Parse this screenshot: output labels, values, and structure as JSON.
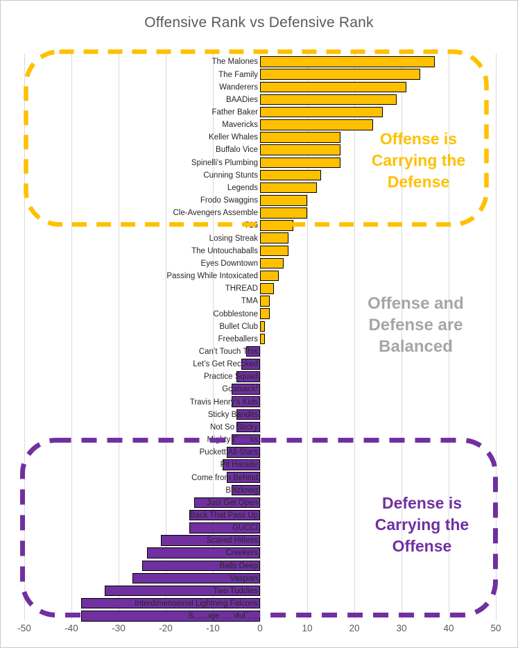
{
  "chart_data": {
    "type": "bar",
    "orientation": "horizontal",
    "title": "Offensive Rank vs Defensive Rank",
    "xlabel": "",
    "ylabel": "",
    "xlim": [
      -50,
      50
    ],
    "xticks": [
      -50,
      -40,
      -30,
      -20,
      -10,
      0,
      10,
      20,
      30,
      40,
      50
    ],
    "grid": true,
    "legend": "none",
    "teams": [
      {
        "name": "The Malones",
        "value": 37
      },
      {
        "name": "The Family",
        "value": 34
      },
      {
        "name": "Wanderers",
        "value": 31
      },
      {
        "name": "BAADies",
        "value": 29
      },
      {
        "name": "Father Baker",
        "value": 26
      },
      {
        "name": "Mavericks",
        "value": 24
      },
      {
        "name": "Keller Whales",
        "value": 17
      },
      {
        "name": "Buffalo Vice",
        "value": 17
      },
      {
        "name": "Spinelli's Plumbing",
        "value": 17
      },
      {
        "name": "Cunning Stunts",
        "value": 13
      },
      {
        "name": "Legends",
        "value": 12
      },
      {
        "name": "Frodo Swaggins",
        "value": 10
      },
      {
        "name": "Cle-Avengers Assemble",
        "value": 10
      },
      {
        "name": "716",
        "value": 7
      },
      {
        "name": "Losing Streak",
        "value": 6
      },
      {
        "name": "The Untouchaballs",
        "value": 6
      },
      {
        "name": "Eyes Downtown",
        "value": 5
      },
      {
        "name": "Passing While Intoxicated",
        "value": 4
      },
      {
        "name": "THREAD",
        "value": 3
      },
      {
        "name": "TMA",
        "value": 2
      },
      {
        "name": "Cobblestone",
        "value": 2
      },
      {
        "name": "Bullet Club",
        "value": 1
      },
      {
        "name": "Freeballers",
        "value": 1
      },
      {
        "name": "Can’t Touch This",
        "value": -3
      },
      {
        "name": "Let’s Get Reccked",
        "value": -4
      },
      {
        "name": "Practice Squad",
        "value": -5
      },
      {
        "name": "Goatsack!",
        "value": -6
      },
      {
        "name": "Travis Henry's Kids",
        "value": -6
      },
      {
        "name": "Sticky Bandits",
        "value": -5
      },
      {
        "name": "Not So Sticky",
        "value": -5
      },
      {
        "name": "Mighty Drunks",
        "value": -6
      },
      {
        "name": "Puckett All-Stars",
        "value": -7
      },
      {
        "name": "Pit Harade",
        "value": -8
      },
      {
        "name": "Come from Behind",
        "value": -7
      },
      {
        "name": "Blitzkrieg",
        "value": -6
      },
      {
        "name": "Just Get Open",
        "value": -14
      },
      {
        "name": "Back That Pass Up",
        "value": -15
      },
      {
        "name": "GUCCI",
        "value": -15
      },
      {
        "name": "Scared Hitless",
        "value": -21
      },
      {
        "name": "Creekers",
        "value": -24
      },
      {
        "name": "Balls Deep",
        "value": -25
      },
      {
        "name": "Vaspian",
        "value": -27
      },
      {
        "name": "Two Tuddies",
        "value": -33
      },
      {
        "name": "Interdimensional Lightning Falcons",
        "value": -38
      },
      {
        "name": "Sausage McMuffins",
        "value": -38
      }
    ],
    "colors": {
      "positive_bar": "#FFC000",
      "negative_bar": "#7030A0",
      "bar_outline": "#000000",
      "gridline": "#D9D9D9",
      "title_text": "#595959",
      "tick_text": "#595959",
      "category_text": "#262626",
      "balanced_text": "#A6A6A6"
    },
    "annotations": [
      {
        "id": "offense-carrying",
        "lines": [
          "Offense is",
          "Carrying the",
          "Defense"
        ],
        "color": "#FFC000"
      },
      {
        "id": "balanced",
        "lines": [
          "Offense and",
          "Defense are",
          "Balanced"
        ],
        "color": "#A6A6A6"
      },
      {
        "id": "defense-carrying",
        "lines": [
          "Defense is",
          "Carrying the",
          "Offense"
        ],
        "color": "#7030A0"
      }
    ],
    "group_boxes": [
      {
        "id": "offense-group-box",
        "color": "#FFC000"
      },
      {
        "id": "defense-group-box",
        "color": "#7030A0"
      }
    ]
  }
}
